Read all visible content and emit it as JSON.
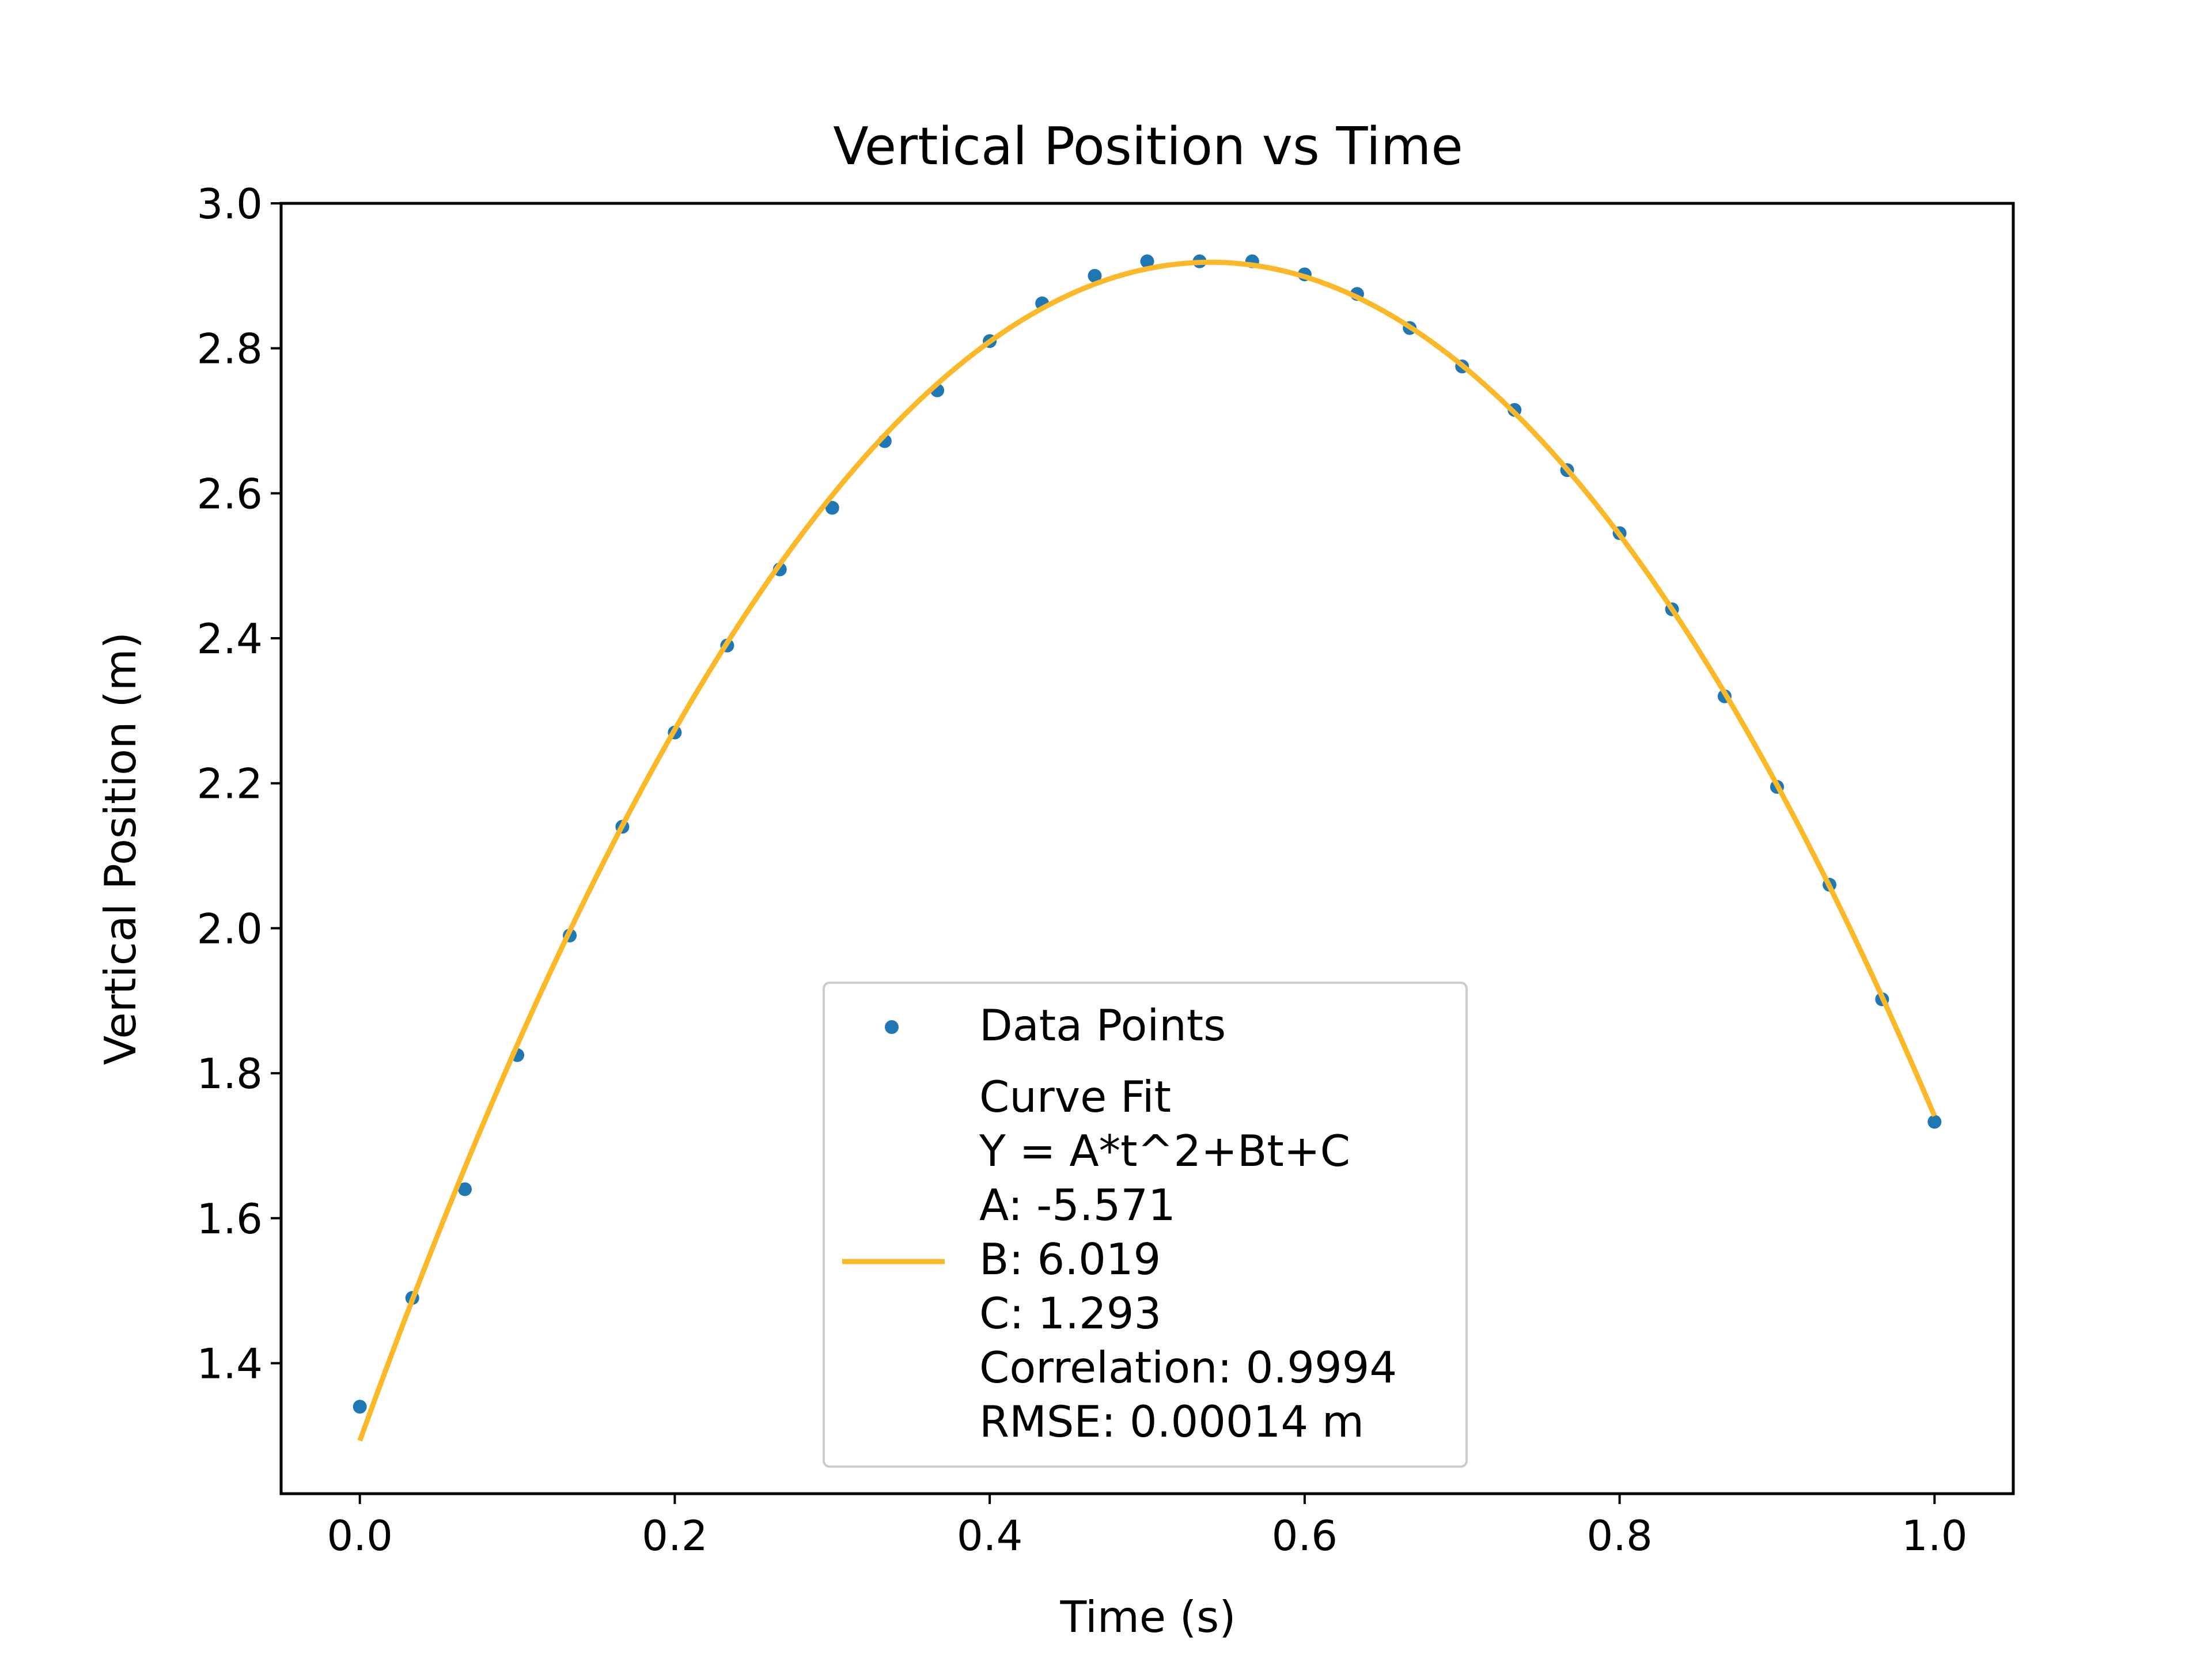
{
  "chart_data": {
    "type": "scatter",
    "title": "Vertical Position vs Time",
    "xlabel": "Time (s)",
    "ylabel": "Vertical Position (m)",
    "xlim": [
      -0.05,
      1.05
    ],
    "ylim": [
      1.22,
      3.0
    ],
    "xticks": [
      0.0,
      0.2,
      0.4,
      0.6,
      0.8,
      1.0
    ],
    "xtick_labels": [
      "0.0",
      "0.2",
      "0.4",
      "0.6",
      "0.8",
      "1.0"
    ],
    "yticks": [
      1.4,
      1.6,
      1.8,
      2.0,
      2.2,
      2.4,
      2.6,
      2.8,
      3.0
    ],
    "ytick_labels": [
      "1.4",
      "1.6",
      "1.8",
      "2.0",
      "2.2",
      "2.4",
      "2.6",
      "2.8",
      "3.0"
    ],
    "grid": false,
    "legend_position": "lower-center",
    "series": [
      {
        "name": "Data Points",
        "kind": "scatter",
        "color": "#1f77b4",
        "x": [
          0.0,
          0.0333,
          0.0667,
          0.1,
          0.1333,
          0.1667,
          0.2,
          0.2333,
          0.2667,
          0.3,
          0.3333,
          0.3667,
          0.4,
          0.4333,
          0.4667,
          0.5,
          0.5333,
          0.5667,
          0.6,
          0.6333,
          0.6667,
          0.7,
          0.7333,
          0.7667,
          0.8,
          0.8333,
          0.8667,
          0.9,
          0.9333,
          0.9667,
          1.0
        ],
        "y": [
          1.34,
          1.49,
          1.64,
          1.825,
          1.99,
          2.14,
          2.27,
          2.39,
          2.495,
          2.58,
          2.672,
          2.742,
          2.81,
          2.862,
          2.9,
          2.92,
          2.92,
          2.92,
          2.902,
          2.875,
          2.828,
          2.775,
          2.715,
          2.632,
          2.545,
          2.44,
          2.32,
          2.195,
          2.06,
          1.902,
          1.733
        ]
      },
      {
        "name": "Curve Fit\nY = A*t^2+Bt+C\nA: -5.571\nB: 6.019\nC: 1.293\nCorrelation: 0.9994\nRMSE: 0.00014 m",
        "kind": "line",
        "color": "#fbb829",
        "coefficients": {
          "A": -5.571,
          "B": 6.019,
          "C": 1.293
        },
        "x_range": [
          0.0,
          1.0
        ]
      }
    ],
    "legend": {
      "entries": [
        {
          "label_lines": [
            "Data Points"
          ],
          "marker": "point",
          "color": "#1f77b4"
        },
        {
          "label_lines": [
            "Curve Fit",
            "Y = A*t^2+Bt+C",
            "A: -5.571",
            "B: 6.019",
            "C: 1.293",
            "Correlation: 0.9994",
            "RMSE: 0.00014 m"
          ],
          "marker": "line",
          "color": "#fbb829"
        }
      ]
    }
  }
}
